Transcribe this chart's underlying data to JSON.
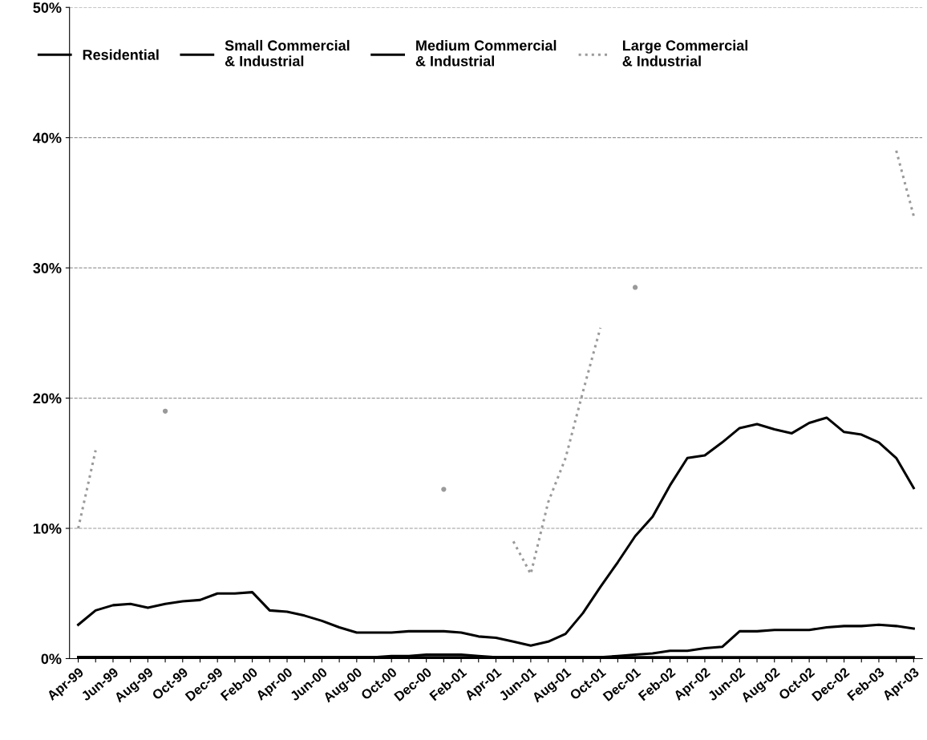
{
  "chart_data": {
    "type": "line",
    "categories": [
      "Apr-99",
      null,
      "Jun-99",
      null,
      "Aug-99",
      null,
      "Oct-99",
      null,
      "Dec-99",
      null,
      "Feb-00",
      null,
      "Apr-00",
      null,
      "Jun-00",
      null,
      "Aug-00",
      null,
      "Oct-00",
      null,
      "Dec-00",
      null,
      "Feb-01",
      null,
      "Apr-01",
      null,
      "Jun-01",
      null,
      "Aug-01",
      null,
      "Oct-01",
      null,
      "Dec-01",
      null,
      "Feb-02",
      null,
      "Apr-02",
      null,
      "Jun-02",
      null,
      "Aug-02",
      null,
      "Oct-02",
      null,
      "Dec-02",
      null,
      "Feb-03",
      null,
      "Apr-03"
    ],
    "series": [
      {
        "name": "Residential",
        "color": "#000000",
        "line_style": "solid",
        "values": [
          0.1,
          0.1,
          0.1,
          0.1,
          0.1,
          0.1,
          0.1,
          0.1,
          0.1,
          0.1,
          0.1,
          0.1,
          0.1,
          0.1,
          0.1,
          0.1,
          0.1,
          0.1,
          0.2,
          0.2,
          0.3,
          0.3,
          0.3,
          0.2,
          0.1,
          0.1,
          0.1,
          0.1,
          0.1,
          0.1,
          0.1,
          0.1,
          0.1,
          0.1,
          0.1,
          0.1,
          0.1,
          0.1,
          0.1,
          0.1,
          0.1,
          0.1,
          0.1,
          0.1,
          0.1,
          0.1,
          0.1,
          0.1,
          0.1
        ]
      },
      {
        "name": "Small Commercial & Industrial",
        "color": "#000000",
        "line_style": "solid",
        "values": [
          0.1,
          0.1,
          0.1,
          0.1,
          0.1,
          0.1,
          0.1,
          0.1,
          0.1,
          0.1,
          0.1,
          0.1,
          0.1,
          0.1,
          0.1,
          0.1,
          0.1,
          0.1,
          0.1,
          0.1,
          0.1,
          0.1,
          0.1,
          0.1,
          0.1,
          0.1,
          0.1,
          0.1,
          0.1,
          0.1,
          0.1,
          0.2,
          0.3,
          0.4,
          0.6,
          0.6,
          0.8,
          0.9,
          2.1,
          2.1,
          2.2,
          2.2,
          2.2,
          2.4,
          2.5,
          2.5,
          2.6,
          2.5,
          2.3
        ]
      },
      {
        "name": "Medium Commercial & Industrial",
        "color": "#000000",
        "line_style": "solid",
        "values": [
          2.6,
          3.7,
          4.1,
          4.2,
          3.9,
          4.2,
          4.4,
          4.5,
          5.0,
          5.0,
          5.1,
          3.7,
          3.6,
          3.3,
          2.9,
          2.4,
          2.0,
          2.0,
          2.0,
          2.1,
          2.1,
          2.1,
          2.0,
          1.7,
          1.6,
          1.3,
          1.0,
          1.3,
          1.9,
          3.5,
          5.5,
          7.4,
          9.4,
          10.9,
          13.3,
          15.4,
          15.6,
          16.6,
          17.7,
          18.0,
          17.6,
          17.3,
          18.1,
          18.5,
          17.4,
          17.2,
          16.6,
          15.4,
          13.1
        ]
      },
      {
        "name": "Large Commercial & Industrial",
        "color": "#9a9a9a",
        "line_style": "dotted",
        "values": [
          10,
          16,
          null,
          null,
          null,
          19,
          null,
          null,
          null,
          null,
          null,
          null,
          null,
          null,
          null,
          null,
          null,
          null,
          null,
          null,
          null,
          13,
          null,
          null,
          null,
          9,
          6.5,
          12,
          15.4,
          20.5,
          25.4,
          null,
          28.5,
          null,
          null,
          null,
          null,
          null,
          null,
          null,
          null,
          null,
          null,
          null,
          null,
          null,
          null,
          39,
          34
        ]
      }
    ],
    "ylim": [
      0,
      50
    ],
    "yticks": [
      {
        "value": 0,
        "label": "0%"
      },
      {
        "value": 10,
        "label": "10%"
      },
      {
        "value": 20,
        "label": "20%"
      },
      {
        "value": 30,
        "label": "30%"
      },
      {
        "value": 40,
        "label": "40%"
      },
      {
        "value": 50,
        "label": "50%"
      }
    ],
    "grid": "y",
    "legend": "top",
    "marker": "none"
  }
}
